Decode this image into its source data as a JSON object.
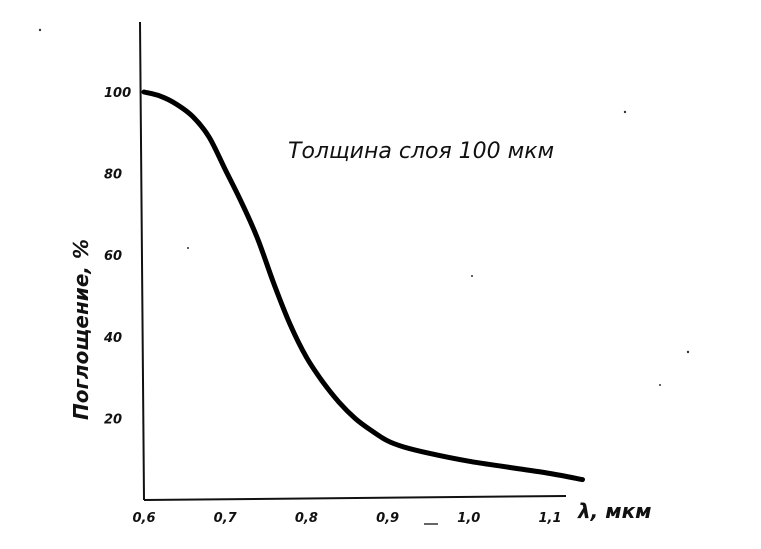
{
  "chart_data": {
    "type": "line",
    "title": "",
    "xlabel": "λ, мкм",
    "ylabel": "Поглощение, %",
    "annotation": "Толщина слоя 100 мкм",
    "x_ticks": [
      "0,6",
      "0,7",
      "0,8",
      "0,9",
      "1,0",
      "1,1"
    ],
    "y_ticks": [
      "20",
      "40",
      "60",
      "80",
      "100"
    ],
    "xlim": [
      0.6,
      1.15
    ],
    "ylim": [
      0,
      100
    ],
    "grid": false,
    "series": [
      {
        "x": [
          0.6,
          0.62,
          0.64,
          0.66,
          0.68,
          0.7,
          0.72,
          0.74,
          0.76,
          0.78,
          0.8,
          0.82,
          0.84,
          0.86,
          0.88,
          0.9,
          0.92,
          0.95,
          1.0,
          1.05,
          1.1,
          1.14
        ],
        "y": [
          100,
          99,
          97,
          94,
          89,
          81,
          73,
          64,
          53,
          43,
          35,
          29,
          24,
          20,
          17,
          14.5,
          13,
          11.5,
          9.5,
          8,
          6.5,
          5
        ]
      }
    ]
  }
}
